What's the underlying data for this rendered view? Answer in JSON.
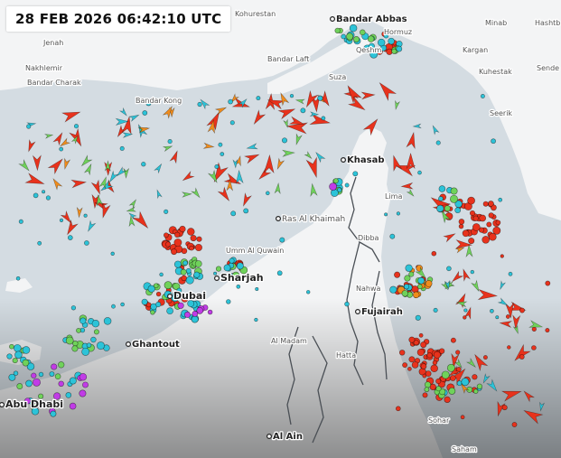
{
  "timestamp": "28 FEB 2026 06:42:10 UTC",
  "colors": {
    "water": "#d4dce2",
    "land": "#f3f4f5",
    "border": "#4a4f55",
    "vessel_red": "#e8321c",
    "vessel_green": "#6fd25a",
    "vessel_cyan": "#2cc3d8",
    "vessel_purple": "#c13ce6",
    "vessel_orange": "#f08c1c"
  },
  "places": [
    {
      "name": "Kohurestan",
      "size": "small"
    },
    {
      "name": "Bandar Abbas",
      "size": "major"
    },
    {
      "name": "Minab",
      "size": "small"
    },
    {
      "name": "Hashtb",
      "size": "small"
    },
    {
      "name": "Hormuz",
      "size": "small"
    },
    {
      "name": "Jenah",
      "size": "small"
    },
    {
      "name": "Qeshm",
      "size": "small"
    },
    {
      "name": "Kargan",
      "size": "small"
    },
    {
      "name": "Bandar Laft",
      "size": "small"
    },
    {
      "name": "Sende",
      "size": "small"
    },
    {
      "name": "Nakhlemir",
      "size": "small"
    },
    {
      "name": "Kuhestak",
      "size": "small"
    },
    {
      "name": "Bandar Charak",
      "size": "small"
    },
    {
      "name": "Suza",
      "size": "small"
    },
    {
      "name": "Bandar Kong",
      "size": "small"
    },
    {
      "name": "Seerik",
      "size": "small"
    },
    {
      "name": "Khasab",
      "size": "major"
    },
    {
      "name": "Lima",
      "size": "small"
    },
    {
      "name": "Ras Al Khaimah",
      "size": "medium"
    },
    {
      "name": "Dibba",
      "size": "small"
    },
    {
      "name": "Umm Al Quwain",
      "size": "small"
    },
    {
      "name": "Sharjah",
      "size": "major"
    },
    {
      "name": "Dubai",
      "size": "major"
    },
    {
      "name": "Nahwa",
      "size": "small"
    },
    {
      "name": "Fujairah",
      "size": "major"
    },
    {
      "name": "Ghantout",
      "size": "major"
    },
    {
      "name": "Al Madam",
      "size": "small"
    },
    {
      "name": "Hatta",
      "size": "small"
    },
    {
      "name": "Abu Dhabi",
      "size": "major"
    },
    {
      "name": "Sohar",
      "size": "small"
    },
    {
      "name": "Al Ain",
      "size": "major"
    },
    {
      "name": "Saham",
      "size": "small"
    }
  ],
  "vessels": [
    {
      "type": "arrow",
      "color": "red",
      "lon": 55.4,
      "lat": 26.55
    },
    {
      "type": "arrow",
      "color": "red",
      "lon": 55.95,
      "lat": 26.4
    },
    {
      "type": "arrow",
      "color": "red",
      "lon": 55.0,
      "lat": 26.3
    },
    {
      "type": "arrow",
      "color": "red",
      "lon": 55.2,
      "lat": 26.2
    }
  ]
}
